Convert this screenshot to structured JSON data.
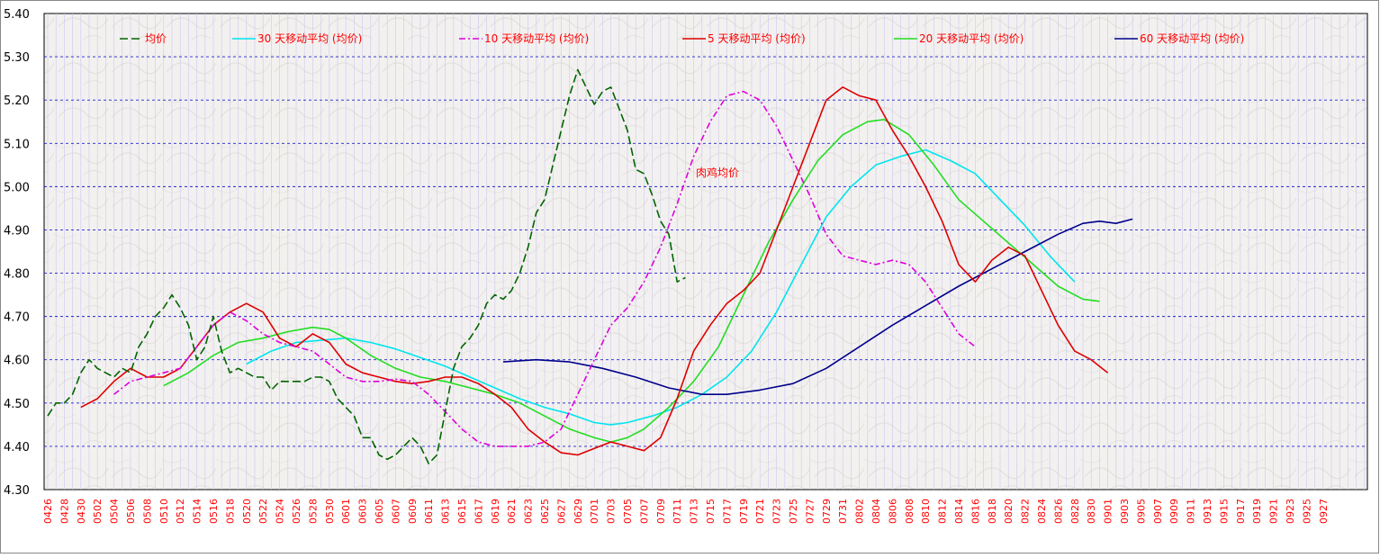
{
  "chart_data": {
    "type": "line",
    "title": "肉鸡均价",
    "xlabel": "",
    "ylabel": "",
    "ylim": [
      4.3,
      5.4
    ],
    "yticks": [
      "4.30",
      "4.40",
      "4.50",
      "4.60",
      "4.70",
      "4.80",
      "4.90",
      "5.00",
      "5.10",
      "5.20",
      "5.30",
      "5.40"
    ],
    "grid": "horizontal dashed",
    "legend_position": "top",
    "categories": [
      "0426",
      "0428",
      "0430",
      "0502",
      "0504",
      "0506",
      "0508",
      "0510",
      "0512",
      "0514",
      "0516",
      "0518",
      "0520",
      "0522",
      "0524",
      "0526",
      "0528",
      "0530",
      "0601",
      "0603",
      "0605",
      "0607",
      "0609",
      "0611",
      "0613",
      "0615",
      "0617",
      "0619",
      "0621",
      "0623",
      "0625",
      "0627",
      "0629",
      "0701",
      "0703",
      "0705",
      "0707",
      "0709",
      "0711",
      "0713",
      "0715",
      "0717",
      "0719",
      "0721",
      "0723",
      "0725",
      "0727",
      "0729",
      "0731",
      "0802",
      "0804",
      "0806",
      "0808",
      "0810",
      "0812",
      "0814",
      "0816",
      "0818",
      "0820",
      "0822",
      "0824",
      "0826",
      "0828",
      "0830",
      "0901",
      "0903",
      "0905",
      "0907",
      "0909",
      "0911",
      "0913",
      "0915",
      "0917",
      "0919",
      "0921",
      "0923",
      "0925",
      "0927"
    ],
    "series": [
      {
        "name": "均价",
        "color": "#006400",
        "style": "dashed",
        "points": [
          [
            0,
            4.47
          ],
          [
            1,
            4.5
          ],
          [
            2,
            4.5
          ],
          [
            3,
            4.52
          ],
          [
            4,
            4.57
          ],
          [
            5,
            4.6
          ],
          [
            6,
            4.58
          ],
          [
            7,
            4.57
          ],
          [
            8,
            4.56
          ],
          [
            9,
            4.58
          ],
          [
            10,
            4.57
          ],
          [
            11,
            4.63
          ],
          [
            12,
            4.66
          ],
          [
            13,
            4.7
          ],
          [
            14,
            4.72
          ],
          [
            15,
            4.75
          ],
          [
            16,
            4.72
          ],
          [
            17,
            4.68
          ],
          [
            18,
            4.6
          ],
          [
            19,
            4.63
          ],
          [
            20,
            4.7
          ],
          [
            21,
            4.62
          ],
          [
            22,
            4.57
          ],
          [
            23,
            4.58
          ],
          [
            24,
            4.57
          ],
          [
            25,
            4.56
          ],
          [
            26,
            4.56
          ],
          [
            27,
            4.53
          ],
          [
            28,
            4.55
          ],
          [
            29,
            4.55
          ],
          [
            30,
            4.55
          ],
          [
            31,
            4.55
          ],
          [
            32,
            4.56
          ],
          [
            33,
            4.56
          ],
          [
            34,
            4.55
          ],
          [
            35,
            4.51
          ],
          [
            36,
            4.49
          ],
          [
            37,
            4.47
          ],
          [
            38,
            4.42
          ],
          [
            39,
            4.42
          ],
          [
            40,
            4.38
          ],
          [
            41,
            4.37
          ],
          [
            42,
            4.38
          ],
          [
            43,
            4.4
          ],
          [
            44,
            4.42
          ],
          [
            45,
            4.4
          ],
          [
            46,
            4.36
          ],
          [
            47,
            4.38
          ],
          [
            48,
            4.48
          ],
          [
            49,
            4.58
          ],
          [
            50,
            4.63
          ],
          [
            51,
            4.65
          ],
          [
            52,
            4.68
          ],
          [
            53,
            4.73
          ],
          [
            54,
            4.75
          ],
          [
            55,
            4.74
          ],
          [
            56,
            4.76
          ],
          [
            57,
            4.8
          ],
          [
            58,
            4.86
          ],
          [
            59,
            4.94
          ],
          [
            60,
            4.97
          ],
          [
            61,
            5.05
          ],
          [
            62,
            5.13
          ],
          [
            63,
            5.21
          ],
          [
            64,
            5.27
          ],
          [
            65,
            5.23
          ],
          [
            66,
            5.19
          ],
          [
            67,
            5.22
          ],
          [
            68,
            5.23
          ],
          [
            69,
            5.18
          ],
          [
            70,
            5.13
          ],
          [
            71,
            5.04
          ],
          [
            72,
            5.03
          ],
          [
            73,
            4.98
          ],
          [
            74,
            4.92
          ],
          [
            75,
            4.89
          ],
          [
            76,
            4.78
          ],
          [
            77,
            4.79
          ]
        ]
      },
      {
        "name": "30 天移动平均 (均价)",
        "color": "#00e5ee",
        "style": "solid",
        "points": [
          [
            24,
            4.59
          ],
          [
            27,
            4.62
          ],
          [
            30,
            4.64
          ],
          [
            33,
            4.645
          ],
          [
            36,
            4.65
          ],
          [
            39,
            4.64
          ],
          [
            42,
            4.625
          ],
          [
            45,
            4.605
          ],
          [
            48,
            4.585
          ],
          [
            51,
            4.56
          ],
          [
            54,
            4.535
          ],
          [
            57,
            4.51
          ],
          [
            60,
            4.49
          ],
          [
            63,
            4.475
          ],
          [
            66,
            4.455
          ],
          [
            68,
            4.45
          ],
          [
            70,
            4.455
          ],
          [
            73,
            4.47
          ],
          [
            76,
            4.49
          ],
          [
            79,
            4.52
          ],
          [
            82,
            4.56
          ],
          [
            85,
            4.62
          ],
          [
            88,
            4.71
          ],
          [
            91,
            4.82
          ],
          [
            94,
            4.93
          ],
          [
            97,
            5.0
          ],
          [
            100,
            5.05
          ],
          [
            103,
            5.07
          ],
          [
            106,
            5.085
          ],
          [
            109,
            5.06
          ],
          [
            112,
            5.03
          ],
          [
            115,
            4.97
          ],
          [
            118,
            4.91
          ],
          [
            121,
            4.84
          ],
          [
            124,
            4.78
          ]
        ]
      },
      {
        "name": "10 天移动平均 (均价)",
        "color": "#dd00dd",
        "style": "dashdot",
        "points": [
          [
            8,
            4.52
          ],
          [
            10,
            4.55
          ],
          [
            12,
            4.56
          ],
          [
            14,
            4.57
          ],
          [
            16,
            4.58
          ],
          [
            18,
            4.63
          ],
          [
            20,
            4.68
          ],
          [
            22,
            4.71
          ],
          [
            24,
            4.69
          ],
          [
            26,
            4.66
          ],
          [
            28,
            4.64
          ],
          [
            30,
            4.63
          ],
          [
            32,
            4.62
          ],
          [
            34,
            4.59
          ],
          [
            36,
            4.56
          ],
          [
            38,
            4.55
          ],
          [
            40,
            4.55
          ],
          [
            42,
            4.555
          ],
          [
            44,
            4.55
          ],
          [
            46,
            4.52
          ],
          [
            48,
            4.48
          ],
          [
            50,
            4.44
          ],
          [
            52,
            4.41
          ],
          [
            54,
            4.4
          ],
          [
            56,
            4.4
          ],
          [
            58,
            4.4
          ],
          [
            60,
            4.41
          ],
          [
            62,
            4.44
          ],
          [
            64,
            4.52
          ],
          [
            66,
            4.6
          ],
          [
            68,
            4.68
          ],
          [
            70,
            4.72
          ],
          [
            72,
            4.78
          ],
          [
            74,
            4.86
          ],
          [
            76,
            4.96
          ],
          [
            78,
            5.07
          ],
          [
            80,
            5.15
          ],
          [
            82,
            5.21
          ],
          [
            84,
            5.22
          ],
          [
            86,
            5.2
          ],
          [
            88,
            5.14
          ],
          [
            90,
            5.06
          ],
          [
            92,
            4.98
          ],
          [
            94,
            4.89
          ],
          [
            96,
            4.84
          ],
          [
            98,
            4.83
          ],
          [
            100,
            4.82
          ],
          [
            102,
            4.83
          ],
          [
            104,
            4.82
          ],
          [
            106,
            4.78
          ],
          [
            108,
            4.72
          ],
          [
            110,
            4.66
          ],
          [
            112,
            4.63
          ]
        ]
      },
      {
        "name": "5 天移动平均 (均价)",
        "color": "#dd0000",
        "style": "solid",
        "points": [
          [
            4,
            4.49
          ],
          [
            6,
            4.51
          ],
          [
            8,
            4.55
          ],
          [
            10,
            4.58
          ],
          [
            12,
            4.56
          ],
          [
            14,
            4.56
          ],
          [
            16,
            4.58
          ],
          [
            18,
            4.63
          ],
          [
            20,
            4.68
          ],
          [
            22,
            4.71
          ],
          [
            24,
            4.73
          ],
          [
            26,
            4.71
          ],
          [
            28,
            4.65
          ],
          [
            30,
            4.63
          ],
          [
            32,
            4.66
          ],
          [
            34,
            4.64
          ],
          [
            36,
            4.59
          ],
          [
            38,
            4.57
          ],
          [
            40,
            4.56
          ],
          [
            42,
            4.55
          ],
          [
            44,
            4.545
          ],
          [
            46,
            4.55
          ],
          [
            48,
            4.56
          ],
          [
            50,
            4.56
          ],
          [
            52,
            4.545
          ],
          [
            54,
            4.52
          ],
          [
            56,
            4.49
          ],
          [
            58,
            4.44
          ],
          [
            60,
            4.41
          ],
          [
            62,
            4.385
          ],
          [
            64,
            4.38
          ],
          [
            66,
            4.395
          ],
          [
            68,
            4.41
          ],
          [
            70,
            4.4
          ],
          [
            72,
            4.39
          ],
          [
            74,
            4.42
          ],
          [
            76,
            4.51
          ],
          [
            78,
            4.62
          ],
          [
            80,
            4.68
          ],
          [
            82,
            4.73
          ],
          [
            84,
            4.76
          ],
          [
            86,
            4.8
          ],
          [
            88,
            4.9
          ],
          [
            90,
            5.0
          ],
          [
            92,
            5.1
          ],
          [
            94,
            5.2
          ],
          [
            96,
            5.23
          ],
          [
            98,
            5.21
          ],
          [
            100,
            5.2
          ],
          [
            102,
            5.13
          ],
          [
            104,
            5.07
          ],
          [
            106,
            5.0
          ],
          [
            108,
            4.92
          ],
          [
            110,
            4.82
          ],
          [
            112,
            4.78
          ],
          [
            114,
            4.83
          ],
          [
            116,
            4.86
          ],
          [
            118,
            4.84
          ],
          [
            120,
            4.76
          ],
          [
            122,
            4.68
          ],
          [
            124,
            4.62
          ],
          [
            126,
            4.6
          ],
          [
            128,
            4.57
          ]
        ]
      },
      {
        "name": "20 天移动平均 (均价)",
        "color": "#22dd22",
        "style": "solid",
        "points": [
          [
            14,
            4.54
          ],
          [
            17,
            4.57
          ],
          [
            20,
            4.61
          ],
          [
            23,
            4.64
          ],
          [
            26,
            4.65
          ],
          [
            29,
            4.665
          ],
          [
            32,
            4.675
          ],
          [
            34,
            4.67
          ],
          [
            36,
            4.65
          ],
          [
            39,
            4.61
          ],
          [
            42,
            4.58
          ],
          [
            45,
            4.56
          ],
          [
            48,
            4.55
          ],
          [
            51,
            4.535
          ],
          [
            54,
            4.52
          ],
          [
            57,
            4.5
          ],
          [
            60,
            4.47
          ],
          [
            63,
            4.44
          ],
          [
            66,
            4.42
          ],
          [
            68,
            4.41
          ],
          [
            70,
            4.42
          ],
          [
            72,
            4.44
          ],
          [
            75,
            4.49
          ],
          [
            78,
            4.55
          ],
          [
            81,
            4.63
          ],
          [
            84,
            4.75
          ],
          [
            87,
            4.87
          ],
          [
            90,
            4.97
          ],
          [
            93,
            5.06
          ],
          [
            96,
            5.12
          ],
          [
            99,
            5.15
          ],
          [
            101,
            5.155
          ],
          [
            104,
            5.12
          ],
          [
            107,
            5.05
          ],
          [
            110,
            4.97
          ],
          [
            113,
            4.92
          ],
          [
            116,
            4.87
          ],
          [
            119,
            4.82
          ],
          [
            122,
            4.77
          ],
          [
            125,
            4.74
          ],
          [
            127,
            4.735
          ]
        ]
      },
      {
        "name": "60 天移动平均 (均价)",
        "color": "#00008b",
        "style": "solid",
        "points": [
          [
            55,
            4.595
          ],
          [
            59,
            4.6
          ],
          [
            63,
            4.595
          ],
          [
            67,
            4.58
          ],
          [
            71,
            4.56
          ],
          [
            75,
            4.535
          ],
          [
            79,
            4.52
          ],
          [
            82,
            4.52
          ],
          [
            86,
            4.53
          ],
          [
            90,
            4.545
          ],
          [
            94,
            4.58
          ],
          [
            98,
            4.63
          ],
          [
            102,
            4.68
          ],
          [
            106,
            4.725
          ],
          [
            110,
            4.77
          ],
          [
            114,
            4.81
          ],
          [
            118,
            4.85
          ],
          [
            122,
            4.89
          ],
          [
            125,
            4.915
          ],
          [
            127,
            4.92
          ],
          [
            129,
            4.915
          ],
          [
            131,
            4.925
          ]
        ]
      }
    ]
  }
}
